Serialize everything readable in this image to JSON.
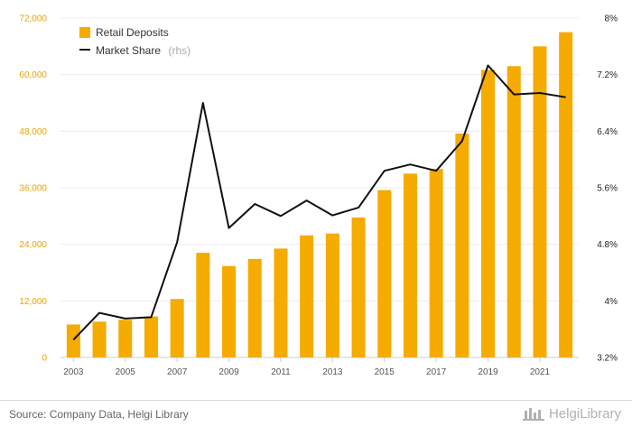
{
  "chart_data": {
    "type": "bar+line",
    "categories": [
      "2003",
      "2004",
      "2005",
      "2006",
      "2007",
      "2008",
      "2009",
      "2010",
      "2011",
      "2012",
      "2013",
      "2014",
      "2015",
      "2016",
      "2017",
      "2018",
      "2019",
      "2020",
      "2021",
      "2022"
    ],
    "x_tick_labels": [
      "2003",
      "2005",
      "2007",
      "2009",
      "2011",
      "2013",
      "2015",
      "2017",
      "2019",
      "2021"
    ],
    "series": [
      {
        "name": "Retail Deposits",
        "axis": "left",
        "kind": "bar",
        "color": "#f5ab00",
        "values": [
          7000,
          7600,
          8000,
          8700,
          12400,
          22200,
          19400,
          20900,
          23100,
          25900,
          26300,
          29700,
          35500,
          39000,
          40000,
          47500,
          61000,
          61800,
          66000,
          69000
        ]
      },
      {
        "name": "Market Share",
        "suffix": "(rhs)",
        "axis": "right",
        "kind": "line",
        "color": "#111111",
        "values": [
          3.45,
          3.83,
          3.75,
          3.77,
          4.83,
          6.8,
          5.03,
          5.37,
          5.2,
          5.42,
          5.21,
          5.32,
          5.84,
          5.93,
          5.84,
          6.26,
          7.33,
          6.92,
          6.94,
          6.88
        ]
      }
    ],
    "left_axis": {
      "ylim": [
        0,
        72000
      ],
      "ticks": [
        "0",
        "12,000",
        "24,000",
        "36,000",
        "48,000",
        "60,000",
        "72,000"
      ],
      "tick_color": "#e6a200"
    },
    "right_axis": {
      "ylim": [
        3.2,
        8.0
      ],
      "ticks": [
        "3.2%",
        "4%",
        "4.8%",
        "5.6%",
        "6.4%",
        "7.2%",
        "8%"
      ],
      "tick_color": "#222222"
    },
    "legend": "top-left",
    "grid": true
  },
  "footer": {
    "source": "Source: Company Data, Helgi Library",
    "brand": "HelgiLibrary"
  }
}
